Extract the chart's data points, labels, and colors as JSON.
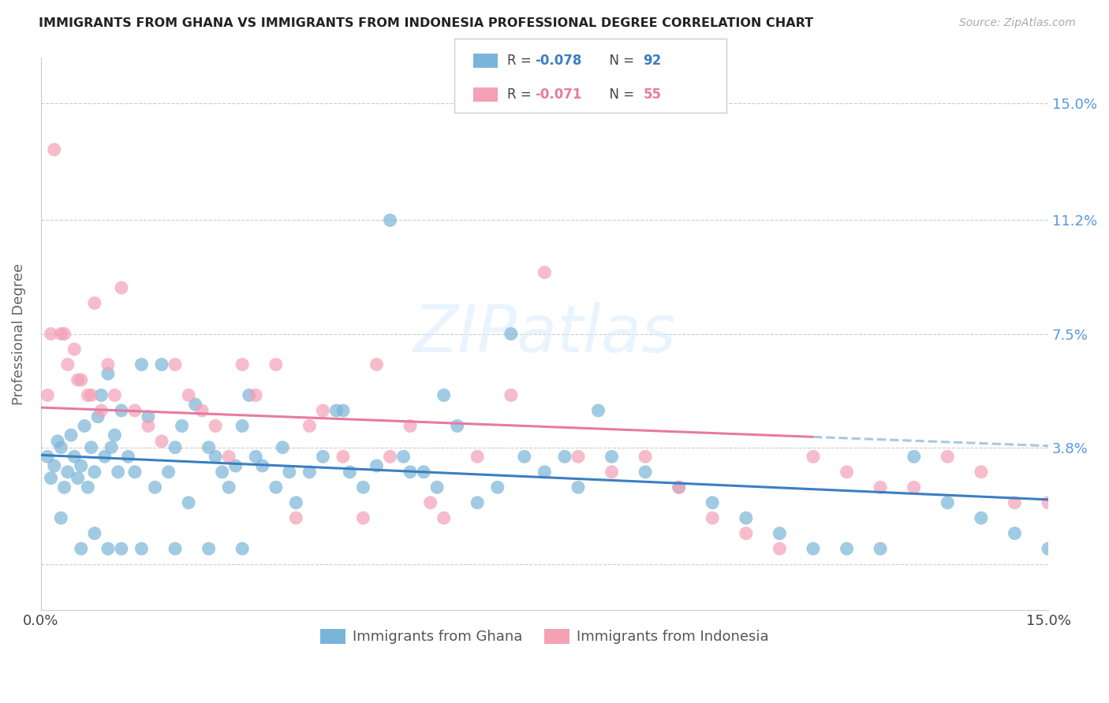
{
  "title": "IMMIGRANTS FROM GHANA VS IMMIGRANTS FROM INDONESIA PROFESSIONAL DEGREE CORRELATION CHART",
  "source": "Source: ZipAtlas.com",
  "ylabel": "Professional Degree",
  "ytick_values": [
    0.0,
    3.8,
    7.5,
    11.2,
    15.0
  ],
  "ytick_labels": [
    "",
    "3.8%",
    "7.5%",
    "11.2%",
    "15.0%"
  ],
  "xlim": [
    0.0,
    15.0
  ],
  "ylim": [
    -1.5,
    16.5
  ],
  "ghana_color": "#7ab4d8",
  "indonesia_color": "#f4a0b5",
  "ghana_line_color": "#3a7fc1",
  "indonesia_line_color": "#e87a9f",
  "ghana_dash_color": "#a8c8e0",
  "ghana_R": -0.078,
  "ghana_N": 92,
  "indonesia_R": -0.071,
  "indonesia_N": 55,
  "watermark": "ZIPatlas",
  "ghana_line_x0": 0.0,
  "ghana_line_y0": 3.55,
  "ghana_line_x1": 15.0,
  "ghana_line_y1": 2.1,
  "indonesia_line_x0": 0.0,
  "indonesia_line_y0": 5.1,
  "indonesia_line_x1": 15.0,
  "indonesia_line_y1": 3.85,
  "indonesia_solid_end_x": 11.5,
  "ghana_scatter_x": [
    0.1,
    0.15,
    0.2,
    0.25,
    0.3,
    0.35,
    0.4,
    0.45,
    0.5,
    0.55,
    0.6,
    0.65,
    0.7,
    0.75,
    0.8,
    0.85,
    0.9,
    0.95,
    1.0,
    1.05,
    1.1,
    1.15,
    1.2,
    1.3,
    1.4,
    1.5,
    1.6,
    1.7,
    1.8,
    1.9,
    2.0,
    2.1,
    2.2,
    2.3,
    2.5,
    2.6,
    2.7,
    2.8,
    2.9,
    3.0,
    3.1,
    3.2,
    3.3,
    3.5,
    3.6,
    3.7,
    3.8,
    4.0,
    4.2,
    4.4,
    4.6,
    4.8,
    5.0,
    5.2,
    5.4,
    5.5,
    5.7,
    5.9,
    6.0,
    6.2,
    6.5,
    6.8,
    7.0,
    7.2,
    7.5,
    7.8,
    8.0,
    8.3,
    8.5,
    9.0,
    9.5,
    10.0,
    10.5,
    11.0,
    11.5,
    12.0,
    12.5,
    13.0,
    13.5,
    14.0,
    14.5,
    15.0,
    0.3,
    0.6,
    0.8,
    1.0,
    1.2,
    1.5,
    2.0,
    2.5,
    3.0,
    4.5
  ],
  "ghana_scatter_y": [
    3.5,
    2.8,
    3.2,
    4.0,
    3.8,
    2.5,
    3.0,
    4.2,
    3.5,
    2.8,
    3.2,
    4.5,
    2.5,
    3.8,
    3.0,
    4.8,
    5.5,
    3.5,
    6.2,
    3.8,
    4.2,
    3.0,
    5.0,
    3.5,
    3.0,
    6.5,
    4.8,
    2.5,
    6.5,
    3.0,
    3.8,
    4.5,
    2.0,
    5.2,
    3.8,
    3.5,
    3.0,
    2.5,
    3.2,
    4.5,
    5.5,
    3.5,
    3.2,
    2.5,
    3.8,
    3.0,
    2.0,
    3.0,
    3.5,
    5.0,
    3.0,
    2.5,
    3.2,
    11.2,
    3.5,
    3.0,
    3.0,
    2.5,
    5.5,
    4.5,
    2.0,
    2.5,
    7.5,
    3.5,
    3.0,
    3.5,
    2.5,
    5.0,
    3.5,
    3.0,
    2.5,
    2.0,
    1.5,
    1.0,
    0.5,
    0.5,
    0.5,
    3.5,
    2.0,
    1.5,
    1.0,
    0.5,
    1.5,
    0.5,
    1.0,
    0.5,
    0.5,
    0.5,
    0.5,
    0.5,
    0.5,
    5.0
  ],
  "indonesia_scatter_x": [
    0.1,
    0.2,
    0.3,
    0.4,
    0.5,
    0.6,
    0.7,
    0.8,
    0.9,
    1.0,
    1.1,
    1.2,
    1.4,
    1.6,
    1.8,
    2.0,
    2.2,
    2.4,
    2.6,
    2.8,
    3.0,
    3.2,
    3.5,
    3.8,
    4.0,
    4.2,
    4.5,
    4.8,
    5.0,
    5.2,
    5.5,
    5.8,
    6.0,
    6.5,
    7.0,
    7.5,
    8.0,
    8.5,
    9.0,
    9.5,
    10.0,
    10.5,
    11.0,
    11.5,
    12.0,
    12.5,
    13.0,
    13.5,
    14.0,
    14.5,
    15.0,
    0.15,
    0.35,
    0.55,
    0.75
  ],
  "indonesia_scatter_y": [
    5.5,
    13.5,
    7.5,
    6.5,
    7.0,
    6.0,
    5.5,
    8.5,
    5.0,
    6.5,
    5.5,
    9.0,
    5.0,
    4.5,
    4.0,
    6.5,
    5.5,
    5.0,
    4.5,
    3.5,
    6.5,
    5.5,
    6.5,
    1.5,
    4.5,
    5.0,
    3.5,
    1.5,
    6.5,
    3.5,
    4.5,
    2.0,
    1.5,
    3.5,
    5.5,
    9.5,
    3.5,
    3.0,
    3.5,
    2.5,
    1.5,
    1.0,
    0.5,
    3.5,
    3.0,
    2.5,
    2.5,
    3.5,
    3.0,
    2.0,
    2.0,
    7.5,
    7.5,
    6.0,
    5.5
  ]
}
